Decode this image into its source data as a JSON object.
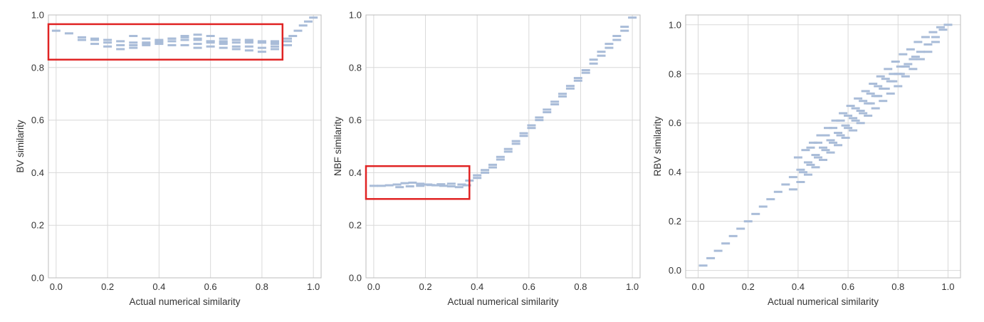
{
  "chart_data": [
    {
      "type": "scatter",
      "xlabel": "Actual numerical similarity",
      "ylabel": "BV similarity",
      "xlim": [
        -0.03,
        1.03
      ],
      "ylim": [
        0.0,
        1.0
      ],
      "xticks": [
        "0.0",
        "0.2",
        "0.4",
        "0.6",
        "0.8",
        "1.0"
      ],
      "yticks": [
        "0.0",
        "0.2",
        "0.4",
        "0.6",
        "0.8",
        "1.0"
      ],
      "grid": true,
      "marker_color": "#a9bcd8",
      "highlight_color": "#e02424",
      "highlight_region": {
        "x": [
          -0.03,
          0.88
        ],
        "y": [
          0.83,
          0.965
        ]
      },
      "series": [
        {
          "values": [
            [
              0.0,
              0.94
            ],
            [
              0.05,
              0.93
            ],
            [
              0.1,
              0.915
            ],
            [
              0.15,
              0.905
            ],
            [
              0.2,
              0.895
            ],
            [
              0.25,
              0.885
            ],
            [
              0.3,
              0.885
            ],
            [
              0.35,
              0.89
            ],
            [
              0.4,
              0.895
            ],
            [
              0.45,
              0.9
            ],
            [
              0.5,
              0.905
            ],
            [
              0.55,
              0.905
            ],
            [
              0.6,
              0.9
            ],
            [
              0.65,
              0.895
            ],
            [
              0.7,
              0.895
            ],
            [
              0.75,
              0.895
            ],
            [
              0.8,
              0.895
            ],
            [
              0.85,
              0.9
            ],
            [
              0.9,
              0.91
            ]
          ]
        },
        {
          "values": [
            [
              0.1,
              0.905
            ],
            [
              0.15,
              0.89
            ],
            [
              0.2,
              0.88
            ],
            [
              0.25,
              0.87
            ],
            [
              0.3,
              0.875
            ],
            [
              0.35,
              0.885
            ],
            [
              0.4,
              0.9
            ],
            [
              0.45,
              0.91
            ],
            [
              0.5,
              0.915
            ],
            [
              0.55,
              0.91
            ],
            [
              0.6,
              0.9
            ],
            [
              0.65,
              0.89
            ],
            [
              0.7,
              0.88
            ],
            [
              0.75,
              0.88
            ],
            [
              0.8,
              0.875
            ],
            [
              0.85,
              0.88
            ]
          ]
        },
        {
          "values": [
            [
              0.15,
              0.91
            ],
            [
              0.2,
              0.905
            ],
            [
              0.25,
              0.9
            ],
            [
              0.3,
              0.895
            ],
            [
              0.35,
              0.895
            ],
            [
              0.4,
              0.89
            ],
            [
              0.45,
              0.885
            ],
            [
              0.5,
              0.885
            ],
            [
              0.55,
              0.89
            ],
            [
              0.6,
              0.895
            ],
            [
              0.65,
              0.9
            ],
            [
              0.7,
              0.905
            ],
            [
              0.75,
              0.905
            ],
            [
              0.8,
              0.9
            ],
            [
              0.85,
              0.895
            ]
          ]
        },
        {
          "values": [
            [
              0.3,
              0.92
            ],
            [
              0.35,
              0.91
            ],
            [
              0.4,
              0.905
            ],
            [
              0.45,
              0.91
            ],
            [
              0.5,
              0.92
            ],
            [
              0.55,
              0.925
            ],
            [
              0.6,
              0.92
            ],
            [
              0.65,
              0.91
            ],
            [
              0.7,
              0.905
            ],
            [
              0.75,
              0.9
            ],
            [
              0.8,
              0.895
            ],
            [
              0.85,
              0.89
            ]
          ]
        },
        {
          "values": [
            [
              0.55,
              0.875
            ],
            [
              0.6,
              0.88
            ],
            [
              0.65,
              0.875
            ],
            [
              0.7,
              0.87
            ],
            [
              0.75,
              0.865
            ],
            [
              0.8,
              0.86
            ],
            [
              0.85,
              0.87
            ],
            [
              0.9,
              0.885
            ]
          ]
        },
        {
          "values": [
            [
              0.9,
              0.9
            ],
            [
              0.92,
              0.92
            ],
            [
              0.94,
              0.94
            ],
            [
              0.96,
              0.96
            ],
            [
              0.98,
              0.975
            ],
            [
              1.0,
              0.99
            ]
          ]
        }
      ]
    },
    {
      "type": "scatter",
      "xlabel": "Actual numerical similarity",
      "ylabel": "NBF similarity",
      "xlim": [
        -0.03,
        1.03
      ],
      "ylim": [
        0.0,
        1.0
      ],
      "xticks": [
        "0.0",
        "0.2",
        "0.4",
        "0.6",
        "0.8",
        "1.0"
      ],
      "yticks": [
        "0.0",
        "0.2",
        "0.4",
        "0.6",
        "0.8",
        "1.0"
      ],
      "grid": true,
      "marker_color": "#a9bcd8",
      "highlight_color": "#e02424",
      "highlight_region": {
        "x": [
          -0.03,
          0.37
        ],
        "y": [
          0.3,
          0.425
        ]
      },
      "series": [
        {
          "values": [
            [
              0.0,
              0.35
            ],
            [
              0.03,
              0.35
            ],
            [
              0.06,
              0.352
            ],
            [
              0.09,
              0.355
            ],
            [
              0.12,
              0.36
            ],
            [
              0.15,
              0.362
            ],
            [
              0.18,
              0.358
            ],
            [
              0.21,
              0.355
            ],
            [
              0.24,
              0.352
            ],
            [
              0.27,
              0.35
            ],
            [
              0.3,
              0.348
            ],
            [
              0.33,
              0.345
            ],
            [
              0.36,
              0.352
            ]
          ]
        },
        {
          "values": [
            [
              0.1,
              0.345
            ],
            [
              0.14,
              0.348
            ],
            [
              0.18,
              0.35
            ],
            [
              0.22,
              0.353
            ],
            [
              0.26,
              0.356
            ],
            [
              0.3,
              0.358
            ],
            [
              0.34,
              0.355
            ]
          ]
        },
        {
          "values": [
            [
              0.37,
              0.37
            ],
            [
              0.4,
              0.39
            ],
            [
              0.43,
              0.41
            ],
            [
              0.46,
              0.43
            ],
            [
              0.49,
              0.46
            ],
            [
              0.52,
              0.49
            ],
            [
              0.55,
              0.52
            ],
            [
              0.58,
              0.55
            ],
            [
              0.61,
              0.58
            ],
            [
              0.64,
              0.61
            ],
            [
              0.67,
              0.64
            ],
            [
              0.7,
              0.67
            ],
            [
              0.73,
              0.7
            ],
            [
              0.76,
              0.73
            ],
            [
              0.79,
              0.76
            ],
            [
              0.82,
              0.79
            ],
            [
              0.85,
              0.83
            ],
            [
              0.88,
              0.86
            ],
            [
              0.91,
              0.89
            ],
            [
              0.94,
              0.92
            ],
            [
              0.97,
              0.955
            ],
            [
              1.0,
              0.99
            ]
          ]
        },
        {
          "values": [
            [
              0.4,
              0.38
            ],
            [
              0.43,
              0.4
            ],
            [
              0.46,
              0.42
            ],
            [
              0.49,
              0.45
            ],
            [
              0.52,
              0.48
            ],
            [
              0.55,
              0.51
            ],
            [
              0.58,
              0.54
            ],
            [
              0.61,
              0.57
            ],
            [
              0.64,
              0.6
            ],
            [
              0.67,
              0.63
            ],
            [
              0.7,
              0.66
            ],
            [
              0.73,
              0.69
            ],
            [
              0.76,
              0.72
            ],
            [
              0.79,
              0.75
            ],
            [
              0.82,
              0.78
            ],
            [
              0.85,
              0.815
            ],
            [
              0.88,
              0.845
            ],
            [
              0.91,
              0.875
            ],
            [
              0.94,
              0.905
            ],
            [
              0.97,
              0.94
            ]
          ]
        }
      ]
    },
    {
      "type": "scatter",
      "xlabel": "Actual numerical similarity",
      "ylabel": "RBV similarity",
      "xlim": [
        -0.05,
        1.05
      ],
      "ylim": [
        -0.03,
        1.04
      ],
      "xticks": [
        "0.0",
        "0.2",
        "0.4",
        "0.6",
        "0.8",
        "1.0"
      ],
      "yticks": [
        "0.0",
        "0.2",
        "0.4",
        "0.6",
        "0.8",
        "1.0"
      ],
      "grid": true,
      "marker_color": "#a9bcd8",
      "series": [
        {
          "values": [
            [
              0.02,
              0.02
            ],
            [
              0.05,
              0.05
            ],
            [
              0.08,
              0.08
            ],
            [
              0.11,
              0.11
            ],
            [
              0.14,
              0.14
            ],
            [
              0.17,
              0.17
            ],
            [
              0.2,
              0.2
            ],
            [
              0.23,
              0.23
            ],
            [
              0.26,
              0.26
            ],
            [
              0.29,
              0.29
            ],
            [
              0.32,
              0.32
            ],
            [
              0.35,
              0.35
            ],
            [
              0.38,
              0.38
            ],
            [
              0.41,
              0.41
            ],
            [
              0.44,
              0.44
            ],
            [
              0.47,
              0.47
            ],
            [
              0.5,
              0.5
            ],
            [
              0.53,
              0.53
            ],
            [
              0.56,
              0.56
            ],
            [
              0.59,
              0.59
            ],
            [
              0.62,
              0.62
            ],
            [
              0.65,
              0.65
            ],
            [
              0.68,
              0.68
            ],
            [
              0.71,
              0.71
            ],
            [
              0.74,
              0.74
            ],
            [
              0.77,
              0.77
            ],
            [
              0.8,
              0.8
            ],
            [
              0.83,
              0.83
            ],
            [
              0.86,
              0.86
            ],
            [
              0.89,
              0.89
            ],
            [
              0.92,
              0.92
            ],
            [
              0.95,
              0.95
            ],
            [
              0.98,
              0.98
            ],
            [
              1.0,
              1.0
            ]
          ]
        },
        {
          "values": [
            [
              0.4,
              0.46
            ],
            [
              0.43,
              0.49
            ],
            [
              0.46,
              0.52
            ],
            [
              0.49,
              0.55
            ],
            [
              0.52,
              0.58
            ],
            [
              0.55,
              0.61
            ],
            [
              0.58,
              0.64
            ],
            [
              0.61,
              0.67
            ],
            [
              0.64,
              0.7
            ],
            [
              0.67,
              0.73
            ],
            [
              0.7,
              0.76
            ],
            [
              0.73,
              0.79
            ],
            [
              0.76,
              0.82
            ],
            [
              0.79,
              0.85
            ],
            [
              0.82,
              0.88
            ],
            [
              0.85,
              0.9
            ],
            [
              0.88,
              0.93
            ],
            [
              0.91,
              0.95
            ],
            [
              0.94,
              0.97
            ],
            [
              0.97,
              0.99
            ]
          ]
        },
        {
          "values": [
            [
              0.38,
              0.33
            ],
            [
              0.41,
              0.36
            ],
            [
              0.44,
              0.39
            ],
            [
              0.47,
              0.42
            ],
            [
              0.5,
              0.45
            ],
            [
              0.53,
              0.48
            ],
            [
              0.56,
              0.51
            ],
            [
              0.59,
              0.54
            ],
            [
              0.62,
              0.57
            ],
            [
              0.65,
              0.6
            ],
            [
              0.68,
              0.63
            ],
            [
              0.71,
              0.66
            ],
            [
              0.74,
              0.69
            ],
            [
              0.77,
              0.72
            ],
            [
              0.8,
              0.75
            ],
            [
              0.83,
              0.79
            ],
            [
              0.86,
              0.82
            ],
            [
              0.89,
              0.86
            ],
            [
              0.92,
              0.89
            ],
            [
              0.95,
              0.93
            ]
          ]
        },
        {
          "values": [
            [
              0.45,
              0.5
            ],
            [
              0.48,
              0.52
            ],
            [
              0.51,
              0.55
            ],
            [
              0.54,
              0.58
            ],
            [
              0.57,
              0.61
            ],
            [
              0.6,
              0.63
            ],
            [
              0.63,
              0.66
            ],
            [
              0.66,
              0.69
            ],
            [
              0.69,
              0.72
            ],
            [
              0.72,
              0.75
            ],
            [
              0.75,
              0.78
            ],
            [
              0.78,
              0.8
            ],
            [
              0.81,
              0.83
            ]
          ]
        },
        {
          "values": [
            [
              0.42,
              0.4
            ],
            [
              0.45,
              0.43
            ],
            [
              0.48,
              0.46
            ],
            [
              0.51,
              0.49
            ],
            [
              0.54,
              0.52
            ],
            [
              0.57,
              0.55
            ],
            [
              0.6,
              0.58
            ],
            [
              0.63,
              0.61
            ],
            [
              0.66,
              0.64
            ],
            [
              0.69,
              0.68
            ],
            [
              0.72,
              0.71
            ],
            [
              0.75,
              0.74
            ],
            [
              0.78,
              0.77
            ],
            [
              0.81,
              0.8
            ],
            [
              0.84,
              0.84
            ],
            [
              0.87,
              0.87
            ]
          ]
        }
      ]
    }
  ]
}
